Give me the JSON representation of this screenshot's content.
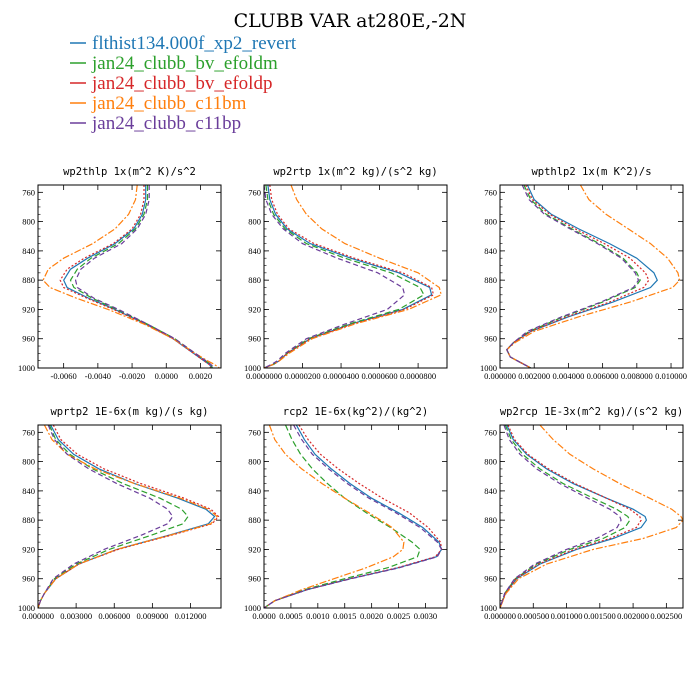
{
  "title": "CLUBB VAR at280E,-2N",
  "series": [
    {
      "name": "flthist134.000f_xp2_revert",
      "color": "#1f77b4",
      "dash": ""
    },
    {
      "name": "jan24_clubb_bv_efoldm",
      "color": "#2ca02c",
      "dash": "6,3"
    },
    {
      "name": "jan24_clubb_bv_efoldp",
      "color": "#d62728",
      "dash": "2,2"
    },
    {
      "name": "jan24_clubb_c11bm",
      "color": "#ff7f0e",
      "dash": "7,2,2,2"
    },
    {
      "name": "jan24_clubb_c11bp",
      "color": "#6a3d9a",
      "dash": "5,3"
    }
  ],
  "chart_data": [
    {
      "type": "line",
      "title": "wp2thlp  1x(m^2 K)/s^2",
      "xlim": [
        -0.0075,
        0.0032
      ],
      "xticks": [
        "-0.0060",
        "-0.0040",
        "-0.0020",
        "0.0000",
        "0.0020"
      ],
      "xtick_values": [
        -0.006,
        -0.004,
        -0.002,
        0.0,
        0.002
      ],
      "ylim": [
        750,
        1000
      ],
      "yticks": [
        "760",
        "800",
        "840",
        "880",
        "920",
        "960",
        "1000"
      ],
      "ytick_values": [
        760,
        800,
        840,
        880,
        920,
        960,
        1000
      ],
      "y": [
        750,
        770,
        790,
        810,
        830,
        850,
        865,
        880,
        890,
        905,
        920,
        940,
        960,
        980,
        990,
        995,
        1000
      ],
      "series": [
        {
          "x": [
            -0.0012,
            -0.0012,
            -0.0014,
            -0.0019,
            -0.003,
            -0.0046,
            -0.0056,
            -0.006,
            -0.0058,
            -0.0045,
            -0.003,
            -0.0012,
            0.0004,
            0.0016,
            0.0022,
            0.0025,
            0.0027
          ]
        },
        {
          "x": [
            -0.0011,
            -0.0011,
            -0.0013,
            -0.0018,
            -0.0028,
            -0.0044,
            -0.0052,
            -0.0056,
            -0.0054,
            -0.0043,
            -0.0029,
            -0.0011,
            0.0005,
            0.0017,
            0.0023,
            0.0026,
            0.0027
          ]
        },
        {
          "x": [
            -0.0013,
            -0.0013,
            -0.0015,
            -0.002,
            -0.0031,
            -0.0048,
            -0.0058,
            -0.0062,
            -0.006,
            -0.0046,
            -0.0031,
            -0.0012,
            0.0004,
            0.0016,
            0.0022,
            0.0025,
            0.0026
          ]
        },
        {
          "x": [
            -0.0017,
            -0.0018,
            -0.0022,
            -0.003,
            -0.0043,
            -0.006,
            -0.0069,
            -0.0072,
            -0.0068,
            -0.0052,
            -0.0034,
            -0.0013,
            0.0004,
            0.0017,
            0.0024,
            0.0028,
            0.0031
          ]
        },
        {
          "x": [
            -0.001,
            -0.001,
            -0.0012,
            -0.0017,
            -0.0026,
            -0.0042,
            -0.005,
            -0.0053,
            -0.0052,
            -0.0042,
            -0.0028,
            -0.0011,
            0.0005,
            0.0017,
            0.0023,
            0.0026,
            0.0028
          ]
        }
      ]
    },
    {
      "type": "line",
      "title": "wp2rtp  1x(m^2 kg)/(s^2 kg)",
      "xlim": [
        0.0,
        9.5e-05
      ],
      "xticks": [
        "0.0000000",
        "0.0000200",
        "0.0000400",
        "0.0000600",
        "0.0000800"
      ],
      "xtick_values": [
        0.0,
        2e-05,
        4e-05,
        6e-05,
        8e-05
      ],
      "ylim": [
        750,
        1000
      ],
      "yticks": [
        "760",
        "800",
        "840",
        "880",
        "920",
        "960",
        "1000"
      ],
      "ytick_values": [
        760,
        800,
        840,
        880,
        920,
        960,
        1000
      ],
      "y": [
        750,
        770,
        790,
        810,
        830,
        850,
        870,
        890,
        900,
        920,
        940,
        960,
        980,
        990,
        995,
        1000
      ],
      "series": [
        {
          "x": [
            2e-06,
            3e-06,
            6e-06,
            1.2e-05,
            2.4e-05,
            4.5e-05,
            7e-05,
            8.6e-05,
            8.7e-05,
            7.2e-05,
            4.5e-05,
            2.4e-05,
            1.2e-05,
            8e-06,
            5e-06,
            0.0
          ]
        },
        {
          "x": [
            1e-06,
            2e-06,
            5e-06,
            1.1e-05,
            2.2e-05,
            4.2e-05,
            6.6e-05,
            8.1e-05,
            8.3e-05,
            7e-05,
            4.4e-05,
            2.3e-05,
            1.2e-05,
            8e-06,
            5e-06,
            0.0
          ]
        },
        {
          "x": [
            3e-06,
            4e-06,
            7e-06,
            1.3e-05,
            2.6e-05,
            4.7e-05,
            7.2e-05,
            8.7e-05,
            8.8e-05,
            7.3e-05,
            4.6e-05,
            2.4e-05,
            1.2e-05,
            8e-06,
            5e-06,
            0.0
          ]
        },
        {
          "x": [
            1.4e-05,
            1.7e-05,
            2.2e-05,
            3e-05,
            4.2e-05,
            6e-05,
            8e-05,
            9.1e-05,
            9.2e-05,
            7.5e-05,
            4.7e-05,
            2.5e-05,
            1.3e-05,
            8e-06,
            5e-06,
            0.0
          ]
        },
        {
          "x": [
            0.0,
            1e-06,
            4e-06,
            1e-05,
            2e-05,
            3.8e-05,
            5.9e-05,
            7.2e-05,
            7.3e-05,
            6.4e-05,
            4.2e-05,
            2.2e-05,
            1.1e-05,
            7e-06,
            4e-06,
            0.0
          ]
        }
      ]
    },
    {
      "type": "line",
      "title": "wpthlp2  1x(m K^2)/s",
      "xlim": [
        0.0,
        0.0107
      ],
      "xticks": [
        "0.000000",
        "0.002000",
        "0.004000",
        "0.006000",
        "0.008000",
        "0.010000"
      ],
      "xtick_values": [
        0.0,
        0.002,
        0.004,
        0.006,
        0.008,
        0.01
      ],
      "ylim": [
        750,
        1000
      ],
      "yticks": [
        "760",
        "800",
        "840",
        "880",
        "920",
        "960",
        "1000"
      ],
      "ytick_values": [
        760,
        800,
        840,
        880,
        920,
        960,
        1000
      ],
      "y": [
        750,
        770,
        790,
        810,
        830,
        850,
        870,
        880,
        890,
        910,
        930,
        950,
        965,
        975,
        985,
        990,
        995,
        1000
      ],
      "series": [
        {
          "x": [
            0.0016,
            0.002,
            0.003,
            0.0046,
            0.0064,
            0.008,
            0.009,
            0.0092,
            0.0088,
            0.0066,
            0.004,
            0.0018,
            0.0008,
            0.0004,
            0.0006,
            0.001,
            0.0014,
            0.0018
          ]
        },
        {
          "x": [
            0.0014,
            0.0018,
            0.0027,
            0.0042,
            0.0058,
            0.0072,
            0.008,
            0.0082,
            0.0079,
            0.006,
            0.0037,
            0.0017,
            0.0008,
            0.0004,
            0.0006,
            0.001,
            0.0014,
            0.0018
          ]
        },
        {
          "x": [
            0.0015,
            0.0019,
            0.0029,
            0.0044,
            0.0061,
            0.0076,
            0.0085,
            0.0087,
            0.0084,
            0.0064,
            0.0039,
            0.0018,
            0.0008,
            0.0004,
            0.0006,
            0.001,
            0.0014,
            0.0018
          ]
        },
        {
          "x": [
            0.0047,
            0.0052,
            0.0062,
            0.0075,
            0.0088,
            0.0098,
            0.0104,
            0.0105,
            0.0101,
            0.0076,
            0.0046,
            0.002,
            0.0009,
            0.0004,
            0.0006,
            0.001,
            0.0014,
            0.0018
          ]
        },
        {
          "x": [
            0.0013,
            0.0017,
            0.0026,
            0.0041,
            0.0057,
            0.0071,
            0.0079,
            0.0081,
            0.0078,
            0.0059,
            0.0036,
            0.0016,
            0.0008,
            0.0004,
            0.0006,
            0.001,
            0.0014,
            0.0018
          ]
        }
      ]
    },
    {
      "type": "line",
      "title": "wprtp2  1E-6x(m kg)/(s kg)",
      "xlim": [
        0.0,
        0.0144
      ],
      "xticks": [
        "0.000000",
        "0.003000",
        "0.006000",
        "0.009000",
        "0.012000"
      ],
      "xtick_values": [
        0.0,
        0.003,
        0.006,
        0.009,
        0.012
      ],
      "ylim": [
        750,
        1000
      ],
      "yticks": [
        "760",
        "800",
        "840",
        "880",
        "920",
        "960",
        "1000"
      ],
      "ytick_values": [
        760,
        800,
        840,
        880,
        920,
        960,
        1000
      ],
      "y": [
        750,
        770,
        790,
        810,
        830,
        850,
        865,
        875,
        885,
        900,
        920,
        940,
        960,
        980,
        990,
        1000
      ],
      "series": [
        {
          "x": [
            0.001,
            0.0016,
            0.0028,
            0.0048,
            0.0076,
            0.011,
            0.0132,
            0.0139,
            0.0134,
            0.0104,
            0.0062,
            0.0032,
            0.0014,
            0.0005,
            0.0002,
            0.0
          ]
        },
        {
          "x": [
            0.0009,
            0.0014,
            0.0025,
            0.0043,
            0.0067,
            0.0096,
            0.0113,
            0.0118,
            0.0114,
            0.009,
            0.0056,
            0.003,
            0.0013,
            0.0005,
            0.0002,
            0.0
          ]
        },
        {
          "x": [
            0.0012,
            0.0018,
            0.0031,
            0.0052,
            0.0081,
            0.0115,
            0.0136,
            0.0142,
            0.0137,
            0.0106,
            0.0063,
            0.0032,
            0.0014,
            0.0005,
            0.0002,
            0.0
          ]
        },
        {
          "x": [
            0.0005,
            0.0011,
            0.0023,
            0.0045,
            0.0076,
            0.0112,
            0.0134,
            0.0141,
            0.0136,
            0.0105,
            0.0062,
            0.0032,
            0.0014,
            0.0005,
            0.0002,
            0.0
          ]
        },
        {
          "x": [
            0.0008,
            0.0013,
            0.0023,
            0.004,
            0.0062,
            0.0088,
            0.0102,
            0.0106,
            0.0102,
            0.0082,
            0.0052,
            0.0028,
            0.0012,
            0.0005,
            0.0002,
            0.0
          ]
        }
      ]
    },
    {
      "type": "line",
      "title": "rcp2  1E-6x(kg^2)/(kg^2)",
      "xlim": [
        0.0,
        0.0034
      ],
      "xticks": [
        "0.0000",
        "0.0005",
        "0.0010",
        "0.0015",
        "0.0020",
        "0.0025",
        "0.0030"
      ],
      "xtick_values": [
        0.0,
        0.0005,
        0.001,
        0.0015,
        0.002,
        0.0025,
        0.003
      ],
      "ylim": [
        750,
        1000
      ],
      "yticks": [
        "760",
        "800",
        "840",
        "880",
        "920",
        "960",
        "1000"
      ],
      "ytick_values": [
        760,
        800,
        840,
        880,
        920,
        960,
        1000
      ],
      "y": [
        750,
        770,
        790,
        810,
        830,
        850,
        870,
        890,
        910,
        920,
        930,
        945,
        960,
        975,
        990,
        1000
      ],
      "series": [
        {
          "x": [
            0.0006,
            0.00075,
            0.00095,
            0.00125,
            0.0016,
            0.002,
            0.0025,
            0.00295,
            0.00325,
            0.0033,
            0.0032,
            0.0025,
            0.0016,
            0.0008,
            0.0002,
            0.0
          ]
        },
        {
          "x": [
            0.0004,
            0.00052,
            0.00068,
            0.0009,
            0.00118,
            0.0015,
            0.0019,
            0.00235,
            0.00275,
            0.0029,
            0.00285,
            0.0023,
            0.0015,
            0.00075,
            0.0002,
            0.0
          ]
        },
        {
          "x": [
            0.00065,
            0.00082,
            0.00105,
            0.00138,
            0.00177,
            0.0022,
            0.0027,
            0.00305,
            0.00328,
            0.0033,
            0.00318,
            0.00248,
            0.0016,
            0.0008,
            0.0002,
            0.0
          ]
        },
        {
          "x": [
            0.0001,
            0.0002,
            0.0004,
            0.0007,
            0.00108,
            0.0015,
            0.00195,
            0.00238,
            0.0026,
            0.00258,
            0.0024,
            0.0019,
            0.0013,
            0.0007,
            0.0002,
            0.0
          ]
        },
        {
          "x": [
            0.00055,
            0.0007,
            0.0009,
            0.0012,
            0.00155,
            0.00195,
            0.00245,
            0.0029,
            0.00322,
            0.0033,
            0.00322,
            0.00252,
            0.00162,
            0.0008,
            0.0002,
            0.0
          ]
        }
      ]
    },
    {
      "type": "line",
      "title": "wp2rcp  1E-3x(m^2 kg)/(s^2 kg)",
      "xlim": [
        0.0,
        0.00275
      ],
      "xticks": [
        "0.000000",
        "0.000500",
        "0.001000",
        "0.001500",
        "0.002000",
        "0.002500"
      ],
      "xtick_values": [
        0.0,
        0.0005,
        0.001,
        0.0015,
        0.002,
        0.0025
      ],
      "ylim": [
        750,
        1000
      ],
      "yticks": [
        "760",
        "800",
        "840",
        "880",
        "920",
        "960",
        "1000"
      ],
      "ytick_values": [
        760,
        800,
        840,
        880,
        920,
        960,
        1000
      ],
      "y": [
        750,
        770,
        790,
        810,
        830,
        850,
        865,
        875,
        880,
        890,
        905,
        920,
        940,
        960,
        980,
        1000
      ],
      "series": [
        {
          "x": [
            0.0001,
            0.0002,
            0.0004,
            0.0007,
            0.0011,
            0.0016,
            0.002,
            0.00218,
            0.0022,
            0.00212,
            0.0017,
            0.00115,
            0.0006,
            0.00025,
            8e-05,
            0.0
          ]
        },
        {
          "x": [
            8e-05,
            0.00017,
            0.00034,
            0.0006,
            0.00095,
            0.0014,
            0.00175,
            0.00192,
            0.00195,
            0.00188,
            0.00155,
            0.00105,
            0.00055,
            0.00023,
            7e-05,
            0.0
          ]
        },
        {
          "x": [
            0.00012,
            0.00022,
            0.00042,
            0.00073,
            0.00113,
            0.0016,
            0.00195,
            0.0021,
            0.00212,
            0.00205,
            0.00165,
            0.00112,
            0.00058,
            0.00024,
            8e-05,
            0.0
          ]
        },
        {
          "x": [
            0.0006,
            0.0008,
            0.00105,
            0.0014,
            0.0018,
            0.00225,
            0.00258,
            0.00272,
            0.00275,
            0.00265,
            0.00215,
            0.0014,
            0.0007,
            0.00028,
            9e-05,
            0.0
          ]
        },
        {
          "x": [
            6e-05,
            0.00014,
            0.0003,
            0.00055,
            0.0009,
            0.00132,
            0.00165,
            0.0018,
            0.00182,
            0.00176,
            0.00145,
            0.001,
            0.00052,
            0.00022,
            7e-05,
            0.0
          ]
        }
      ]
    }
  ]
}
